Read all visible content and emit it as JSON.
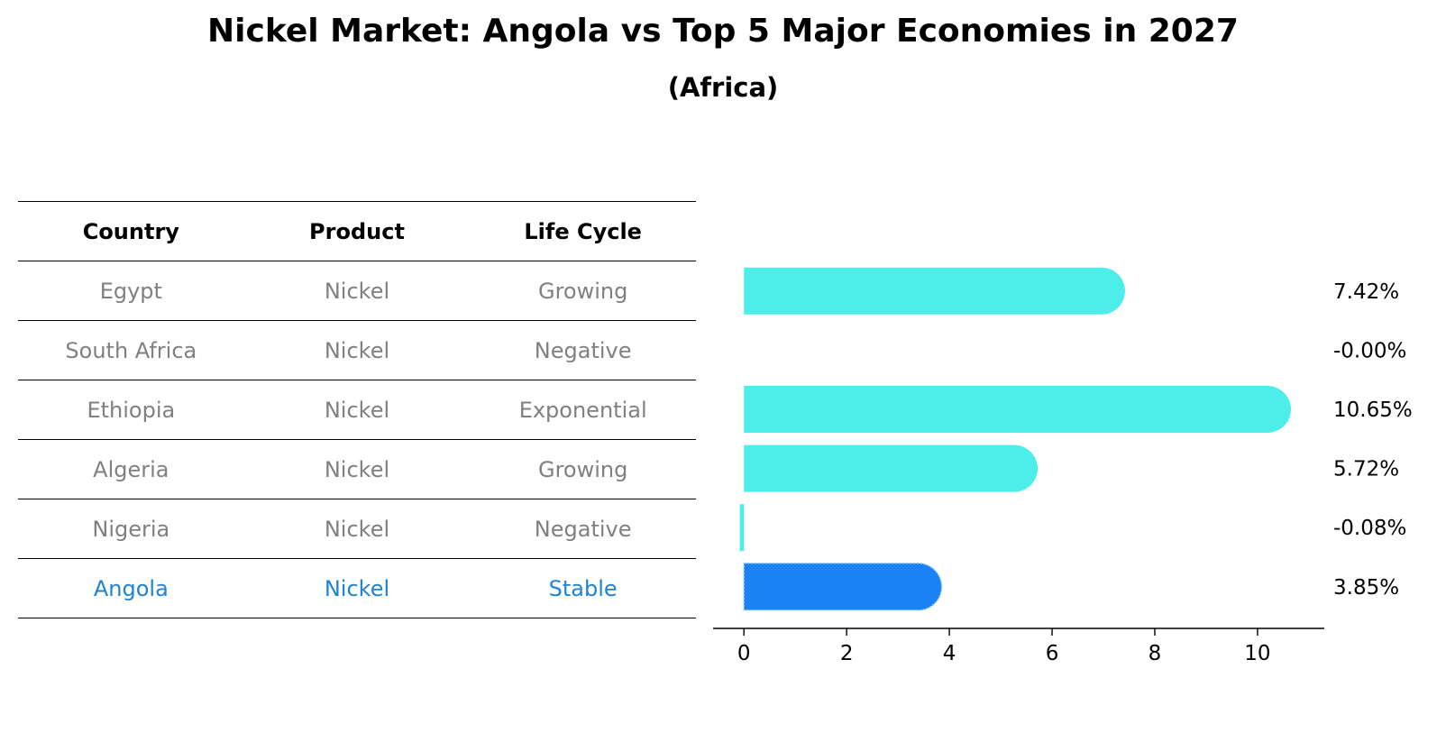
{
  "title": "Nickel Market: Angola vs Top 5 Major Economies in 2027",
  "subtitle": "(Africa)",
  "table": {
    "headers": [
      "Country",
      "Product",
      "Life Cycle"
    ],
    "rows": [
      [
        "Egypt",
        "Nickel",
        "Growing"
      ],
      [
        "South Africa",
        "Nickel",
        "Negative"
      ],
      [
        "Ethiopia",
        "Nickel",
        "Exponential"
      ],
      [
        "Algeria",
        "Nickel",
        "Growing"
      ],
      [
        "Nigeria",
        "Nickel",
        "Negative"
      ],
      [
        "Angola",
        "Nickel",
        "Stable"
      ]
    ],
    "highlight_row": 5
  },
  "colors": {
    "bar": "#4deee9",
    "highlight_bar": "#1a82f5",
    "highlight_text": "#1f82d4",
    "muted_text": "#808080"
  },
  "chart_data": {
    "type": "bar",
    "orientation": "horizontal",
    "categories": [
      "Egypt",
      "South Africa",
      "Ethiopia",
      "Algeria",
      "Nigeria",
      "Angola"
    ],
    "values": [
      7.42,
      -0.0,
      10.65,
      5.72,
      -0.08,
      3.85
    ],
    "labels": [
      "7.42%",
      "-0.00%",
      "10.65%",
      "5.72%",
      "-0.08%",
      "3.85%"
    ],
    "highlight": "Angola",
    "xlim": [
      -0.6,
      11.3
    ],
    "xticks": [
      0,
      2,
      4,
      6,
      8,
      10
    ],
    "xlabel": "",
    "ylabel": ""
  }
}
